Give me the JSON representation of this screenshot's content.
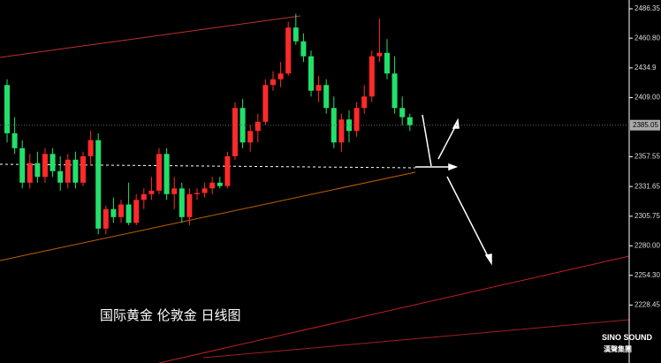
{
  "chart_data": {
    "type": "candlestick",
    "title": "国际黄金 伦敦金 日线图",
    "brand": "SINO SOUND",
    "brand_sub": "漢聲集團",
    "up_color": "#ff2a2a",
    "down_color": "#22e06a",
    "ylim": [
      2178,
      2494
    ],
    "yticks": [
      2486.35,
      {
        "value": 2460.8,
        "label": "2460.80"
      },
      2434.9,
      {
        "value": 2409,
        "label": "2409.00"
      },
      2357.55,
      2331.65,
      2305.75,
      {
        "value": 2280,
        "label": "2280.00"
      },
      {
        "value": 2254.3,
        "label": "2254.30"
      },
      2228.45
    ],
    "last_price": 2385.05,
    "open": [
      2420,
      2378,
      2365,
      2335,
      2352,
      2340,
      2360,
      2345,
      2335,
      2355,
      2335,
      2358,
      2372,
      2295,
      2312,
      2305,
      2316,
      2300,
      2320,
      2325,
      2328,
      2360,
      2325,
      2330,
      2305,
      2325,
      2326,
      2330,
      2335,
      2332,
      2358,
      2400,
      2370,
      2380,
      2388,
      2420,
      2425,
      2430,
      2470,
      2458,
      2445,
      2415,
      2420,
      2400,
      2370,
      2390,
      2380,
      2400,
      2410,
      2445,
      2448,
      2430,
      2400,
      2392
    ],
    "high": [
      2425,
      2392,
      2372,
      2360,
      2362,
      2365,
      2365,
      2358,
      2360,
      2362,
      2362,
      2380,
      2378,
      2315,
      2322,
      2320,
      2335,
      2325,
      2330,
      2340,
      2365,
      2365,
      2340,
      2335,
      2330,
      2330,
      2335,
      2340,
      2340,
      2362,
      2405,
      2408,
      2385,
      2395,
      2425,
      2432,
      2440,
      2475,
      2482,
      2465,
      2450,
      2428,
      2425,
      2410,
      2395,
      2398,
      2405,
      2420,
      2450,
      2478,
      2460,
      2445,
      2410,
      2395
    ],
    "low": [
      2370,
      2360,
      2330,
      2330,
      2335,
      2335,
      2340,
      2328,
      2330,
      2330,
      2332,
      2350,
      2290,
      2290,
      2300,
      2300,
      2298,
      2298,
      2312,
      2320,
      2325,
      2320,
      2312,
      2300,
      2298,
      2320,
      2322,
      2325,
      2330,
      2330,
      2355,
      2365,
      2362,
      2370,
      2385,
      2415,
      2418,
      2428,
      2455,
      2440,
      2410,
      2405,
      2395,
      2365,
      2362,
      2370,
      2375,
      2395,
      2405,
      2440,
      2425,
      2395,
      2385,
      2380
    ],
    "close": [
      2378,
      2365,
      2335,
      2352,
      2340,
      2360,
      2345,
      2335,
      2355,
      2335,
      2358,
      2372,
      2295,
      2312,
      2305,
      2316,
      2300,
      2320,
      2325,
      2328,
      2360,
      2325,
      2330,
      2305,
      2325,
      2326,
      2330,
      2335,
      2332,
      2358,
      2400,
      2370,
      2380,
      2388,
      2420,
      2425,
      2430,
      2470,
      2458,
      2445,
      2415,
      2420,
      2400,
      2370,
      2390,
      2380,
      2400,
      2410,
      2445,
      2448,
      2430,
      2400,
      2392,
      2385
    ]
  }
}
